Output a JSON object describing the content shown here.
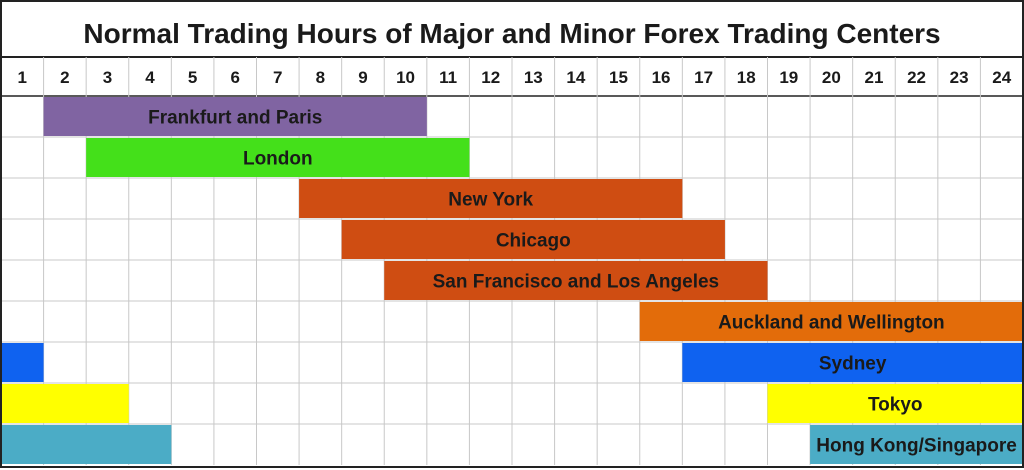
{
  "chart_data": {
    "type": "gantt",
    "title": "Normal Trading Hours of Major and Minor Forex Trading Centers",
    "hours": [
      "1",
      "2",
      "3",
      "4",
      "5",
      "6",
      "7",
      "8",
      "9",
      "10",
      "11",
      "12",
      "13",
      "14",
      "15",
      "16",
      "17",
      "18",
      "19",
      "20",
      "21",
      "22",
      "23",
      "24"
    ],
    "rows": [
      {
        "label": "Frankfurt and Paris",
        "segments": [
          {
            "start": 2,
            "end": 10
          }
        ],
        "color": "#8064a2"
      },
      {
        "label": "London",
        "segments": [
          {
            "start": 3,
            "end": 11
          }
        ],
        "color": "#44e01a"
      },
      {
        "label": "New York",
        "segments": [
          {
            "start": 8,
            "end": 16
          }
        ],
        "color": "#cf4d12"
      },
      {
        "label": "Chicago",
        "segments": [
          {
            "start": 9,
            "end": 17
          }
        ],
        "color": "#cf4d12"
      },
      {
        "label": "San Francisco and Los Angeles",
        "segments": [
          {
            "start": 10,
            "end": 18
          }
        ],
        "color": "#cf4d12"
      },
      {
        "label": "Auckland and Wellington",
        "segments": [
          {
            "start": 16,
            "end": 24
          }
        ],
        "color": "#e36c0a"
      },
      {
        "label": "Sydney",
        "segments": [
          {
            "start": 17,
            "end": 24
          },
          {
            "start": 1,
            "end": 1
          }
        ],
        "color": "#0f62f0"
      },
      {
        "label": "Tokyo",
        "segments": [
          {
            "start": 19,
            "end": 24
          },
          {
            "start": 1,
            "end": 3
          }
        ],
        "color": "#ffff00"
      },
      {
        "label": "Hong Kong/Singapore",
        "segments": [
          {
            "start": 20,
            "end": 24
          },
          {
            "start": 1,
            "end": 4
          }
        ],
        "color": "#4bacc6"
      }
    ],
    "grid": true
  }
}
